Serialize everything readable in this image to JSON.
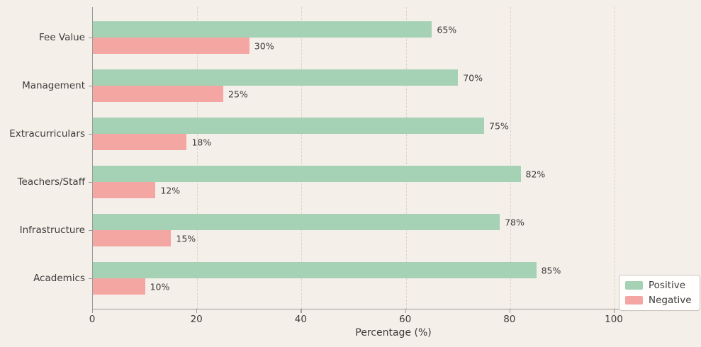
{
  "chart_data": {
    "type": "bar",
    "orientation": "horizontal",
    "title": "",
    "xlabel": "Percentage (%)",
    "ylabel": "",
    "categories": [
      "Fee Value",
      "Management",
      "Extracurriculars",
      "Teachers/Staff",
      "Infrastructure",
      "Academics"
    ],
    "series": [
      {
        "name": "Positive",
        "color": "#a5d1b4",
        "values": [
          65,
          70,
          75,
          82,
          78,
          85
        ]
      },
      {
        "name": "Negative",
        "color": "#f4a7a2",
        "values": [
          30,
          25,
          18,
          12,
          15,
          10
        ]
      }
    ],
    "value_label_suffix": "%",
    "x_ticks": [
      0,
      20,
      40,
      60,
      80,
      100
    ],
    "xlim": [
      0,
      115.5
    ],
    "grid": "vertical-dashed",
    "legend_position": "lower right",
    "background_color": "#f5efe9",
    "text_color": "#3c3c3c",
    "spine_color": "#9a9a98",
    "gridline_color": "#dad3cc"
  }
}
